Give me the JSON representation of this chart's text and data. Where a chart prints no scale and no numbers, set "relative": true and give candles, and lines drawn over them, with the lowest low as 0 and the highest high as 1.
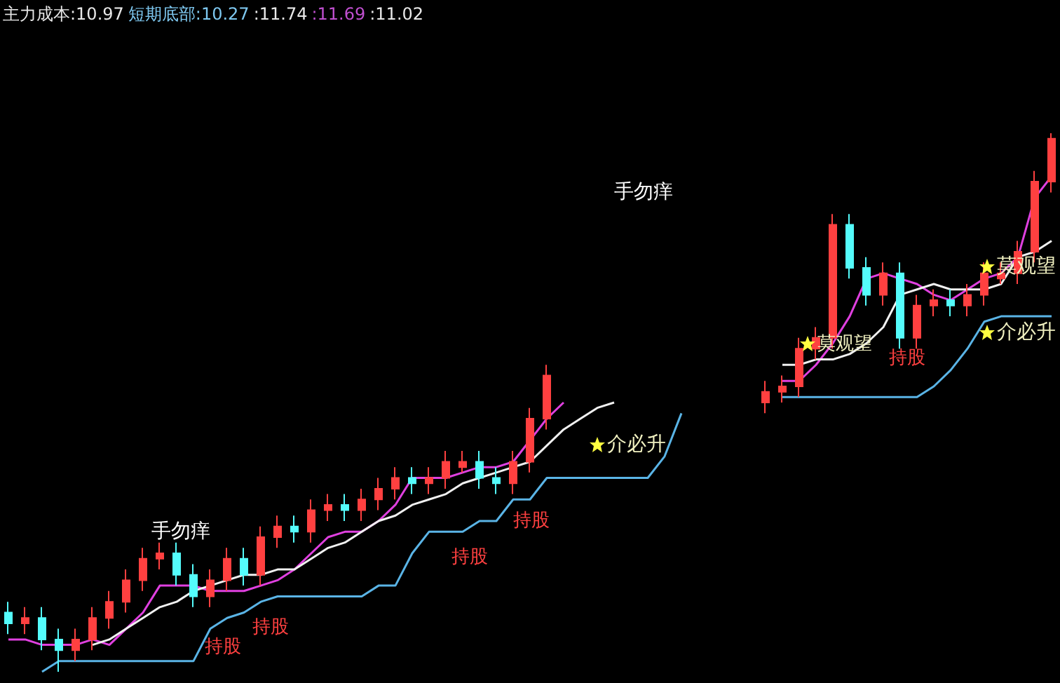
{
  "chart_data": {
    "type": "candlestick",
    "relative": true,
    "marker": "none",
    "categories": [
      null,
      null,
      null,
      null,
      null,
      null,
      null,
      null,
      null,
      null,
      null,
      null,
      null,
      null,
      null,
      null,
      null,
      null,
      null,
      null,
      null,
      null,
      null,
      null,
      null,
      null,
      null,
      null,
      null,
      null,
      null,
      null,
      null,
      null,
      null,
      null,
      null,
      null,
      null,
      null,
      null,
      null,
      null,
      null,
      null,
      null,
      null,
      null,
      null,
      null,
      null,
      null,
      null,
      null,
      null,
      null,
      null,
      null,
      null,
      null,
      null,
      null,
      null
    ],
    "ohlc": [
      [
        0.11,
        0.13,
        0.07,
        0.09
      ],
      [
        0.09,
        0.12,
        0.07,
        0.1
      ],
      [
        0.1,
        0.12,
        0.04,
        0.06
      ],
      [
        0.06,
        0.08,
        0.0,
        0.04
      ],
      [
        0.04,
        0.08,
        0.02,
        0.06
      ],
      [
        0.06,
        0.12,
        0.04,
        0.1
      ],
      [
        0.1,
        0.15,
        0.08,
        0.13
      ],
      [
        0.13,
        0.19,
        0.11,
        0.17
      ],
      [
        0.17,
        0.23,
        0.15,
        0.21
      ],
      [
        0.21,
        0.24,
        0.19,
        0.22
      ],
      [
        0.22,
        0.24,
        0.16,
        0.18
      ],
      [
        0.18,
        0.2,
        0.12,
        0.14
      ],
      [
        0.14,
        0.19,
        0.12,
        0.17
      ],
      [
        0.17,
        0.23,
        0.15,
        0.21
      ],
      [
        0.21,
        0.23,
        0.16,
        0.18
      ],
      [
        0.18,
        0.27,
        0.16,
        0.25
      ],
      [
        0.25,
        0.29,
        0.23,
        0.27
      ],
      [
        0.27,
        0.29,
        0.24,
        0.26
      ],
      [
        0.26,
        0.32,
        0.24,
        0.3
      ],
      [
        0.3,
        0.33,
        0.28,
        0.31
      ],
      [
        0.31,
        0.33,
        0.28,
        0.3
      ],
      [
        0.3,
        0.34,
        0.28,
        0.32
      ],
      [
        0.32,
        0.36,
        0.3,
        0.34
      ],
      [
        0.34,
        0.38,
        0.32,
        0.36
      ],
      [
        0.36,
        0.38,
        0.33,
        0.35
      ],
      [
        0.35,
        0.38,
        0.33,
        0.36
      ],
      [
        0.36,
        0.41,
        0.34,
        0.39
      ],
      [
        0.38,
        0.41,
        0.37,
        0.39
      ],
      [
        0.39,
        0.41,
        0.34,
        0.36
      ],
      [
        0.36,
        0.38,
        0.33,
        0.35
      ],
      [
        0.35,
        0.41,
        0.33,
        0.39
      ],
      [
        0.39,
        0.49,
        0.37,
        0.47
      ],
      [
        0.47,
        0.57,
        0.45,
        0.55
      ],
      null,
      null,
      null,
      null,
      null,
      null,
      null,
      null,
      null,
      null,
      null,
      null,
      [
        0.5,
        0.54,
        0.48,
        0.52
      ],
      [
        0.52,
        0.55,
        0.5,
        0.53
      ],
      [
        0.53,
        0.62,
        0.51,
        0.6
      ],
      [
        0.6,
        0.64,
        0.58,
        0.62
      ],
      [
        0.62,
        0.85,
        0.6,
        0.83
      ],
      [
        0.83,
        0.85,
        0.73,
        0.75
      ],
      [
        0.75,
        0.77,
        0.68,
        0.7
      ],
      [
        0.7,
        0.76,
        0.68,
        0.74
      ],
      [
        0.74,
        0.76,
        0.6,
        0.62
      ],
      [
        0.62,
        0.7,
        0.6,
        0.68
      ],
      [
        0.68,
        0.71,
        0.66,
        0.69
      ],
      [
        0.69,
        0.71,
        0.66,
        0.68
      ],
      [
        0.68,
        0.72,
        0.66,
        0.7
      ],
      [
        0.7,
        0.76,
        0.68,
        0.74
      ],
      [
        0.73,
        0.76,
        0.72,
        0.74
      ],
      [
        0.74,
        0.8,
        0.72,
        0.78
      ],
      [
        0.78,
        0.93,
        0.76,
        0.91
      ],
      [
        0.91,
        1.0,
        0.89,
        0.99
      ]
    ],
    "colors": [
      "#54fcfc",
      "#ff4040",
      "#54fcfc",
      "#54fcfc",
      "#ff4040",
      "#ff4040",
      "#ff4040",
      "#ff4040",
      "#ff4040",
      "#ff4040",
      "#54fcfc",
      "#54fcfc",
      "#ff4040",
      "#ff4040",
      "#54fcfc",
      "#ff4040",
      "#ff4040",
      "#54fcfc",
      "#ff4040",
      "#ff4040",
      "#54fcfc",
      "#ff4040",
      "#ff4040",
      "#ff4040",
      "#54fcfc",
      "#ff4040",
      "#ff4040",
      "#ff4040",
      "#54fcfc",
      "#54fcfc",
      "#ff4040",
      "#ff4040",
      "#ff4040",
      null,
      null,
      null,
      null,
      null,
      null,
      null,
      null,
      null,
      null,
      null,
      null,
      "#ff4040",
      "#ff4040",
      "#ff4040",
      "#ff4040",
      "#ff4040",
      "#54fcfc",
      "#54fcfc",
      "#ff4040",
      "#54fcfc",
      "#ff4040",
      "#ff4040",
      "#54fcfc",
      "#ff4040",
      "#ff4040",
      "#ff4040",
      "#ff4040",
      "#ff4040",
      "#ff4040"
    ],
    "series": [
      {
        "type": "line",
        "color": "#e040e0",
        "values": [
          0.06,
          0.06,
          0.05,
          0.05,
          0.05,
          0.06,
          0.05,
          0.08,
          0.11,
          0.16,
          0.16,
          0.16,
          0.15,
          0.15,
          0.15,
          0.16,
          0.17,
          0.19,
          0.22,
          0.25,
          0.26,
          0.26,
          0.28,
          0.31,
          0.36,
          0.36,
          0.36,
          0.37,
          0.38,
          0.38,
          0.39,
          0.43,
          0.47,
          0.5,
          null,
          null,
          null,
          null,
          null,
          null,
          null,
          null,
          null,
          null,
          null,
          null,
          0.54,
          0.54,
          0.57,
          0.61,
          0.66,
          0.73,
          0.74,
          0.73,
          0.72,
          0.7,
          0.69,
          0.71,
          0.73,
          0.74,
          0.77,
          0.88,
          0.92
        ]
      },
      {
        "type": "line",
        "color": "#f0f0f0",
        "values": [
          null,
          null,
          null,
          null,
          null,
          0.05,
          0.06,
          0.08,
          0.1,
          0.12,
          0.13,
          0.15,
          0.16,
          0.17,
          0.18,
          0.18,
          0.19,
          0.19,
          0.21,
          0.23,
          0.24,
          0.26,
          0.28,
          0.29,
          0.31,
          0.32,
          0.33,
          0.35,
          0.36,
          0.37,
          0.38,
          0.39,
          0.42,
          0.45,
          0.47,
          0.49,
          0.5,
          null,
          null,
          null,
          null,
          null,
          null,
          null,
          null,
          null,
          0.57,
          0.57,
          0.58,
          0.58,
          0.59,
          0.61,
          0.64,
          0.7,
          0.71,
          0.72,
          0.71,
          0.71,
          0.71,
          0.72,
          0.77,
          0.78,
          0.8
        ]
      },
      {
        "type": "line",
        "color": "#5ab4e6",
        "values": [
          null,
          null,
          0.0,
          0.02,
          0.02,
          0.02,
          0.02,
          0.02,
          0.02,
          0.02,
          0.02,
          0.02,
          0.08,
          0.1,
          0.11,
          0.13,
          0.14,
          0.14,
          0.14,
          0.14,
          0.14,
          0.14,
          0.16,
          0.16,
          0.22,
          0.26,
          0.26,
          0.26,
          0.28,
          0.28,
          0.32,
          0.32,
          0.36,
          0.36,
          0.36,
          0.36,
          0.36,
          0.36,
          0.36,
          0.4,
          0.48,
          null,
          null,
          null,
          null,
          null,
          0.51,
          0.51,
          0.51,
          0.51,
          0.51,
          0.51,
          0.51,
          0.51,
          0.51,
          0.53,
          0.56,
          0.6,
          0.65,
          0.66,
          0.66,
          0.66,
          0.66
        ]
      }
    ],
    "annotations": [
      "主力成本:10.97",
      "短期底部:10.27",
      ":11.74",
      ":11.69",
      ":11.02",
      "手勿痒",
      "手勿痒",
      "介必升",
      "莫观望",
      "莫观望",
      "介必升",
      "持股",
      "持股",
      "持股",
      "持股",
      "持股"
    ]
  }
}
